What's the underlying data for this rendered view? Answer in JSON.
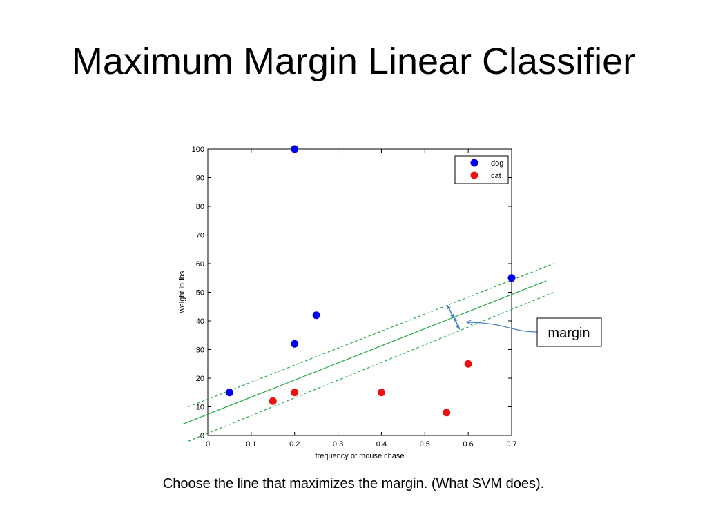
{
  "slide": {
    "title": "Maximum Margin Linear Classifier",
    "caption": "Choose the line that maximizes the margin. (What SVM does)."
  },
  "chart_data": {
    "type": "scatter",
    "title": "",
    "xlabel": "frequency of mouse chase",
    "ylabel": "weight in lbs",
    "xlim": [
      0,
      0.7
    ],
    "ylim": [
      0,
      100
    ],
    "xticks": [
      0,
      0.1,
      0.2,
      0.3,
      0.4,
      0.5,
      0.6,
      0.7
    ],
    "xtick_labels": [
      "0",
      "0.1",
      "0.2",
      "0.3",
      "0.4",
      "0.5",
      "0.6",
      "0.7"
    ],
    "yticks": [
      0,
      10,
      20,
      30,
      40,
      50,
      60,
      70,
      80,
      90,
      100
    ],
    "ytick_labels": [
      "0",
      "10",
      "20",
      "30",
      "40",
      "50",
      "60",
      "70",
      "80",
      "90",
      "100"
    ],
    "grid": false,
    "legend_position": "top-right",
    "series": [
      {
        "name": "dog",
        "color": "#0000ee",
        "points": [
          [
            0.05,
            15
          ],
          [
            0.2,
            32
          ],
          [
            0.2,
            100
          ],
          [
            0.25,
            42
          ],
          [
            0.7,
            55
          ]
        ]
      },
      {
        "name": "cat",
        "color": "#ee1111",
        "points": [
          [
            0.15,
            12
          ],
          [
            0.2,
            15
          ],
          [
            0.4,
            15
          ],
          [
            0.55,
            8
          ],
          [
            0.6,
            25
          ]
        ]
      }
    ],
    "lines": [
      {
        "style": "solid",
        "color": "#22aa44",
        "from": [
          -0.057,
          4
        ],
        "to": [
          0.78,
          54
        ]
      },
      {
        "style": "dashed",
        "color": "#22aa44",
        "from": [
          -0.045,
          10
        ],
        "to": [
          0.797,
          60
        ]
      },
      {
        "style": "dashed",
        "color": "#22aa44",
        "from": [
          -0.045,
          -2
        ],
        "to": [
          0.797,
          50
        ]
      }
    ],
    "annotation": {
      "label": "margin",
      "arrow_color": "#4a7fc0"
    }
  }
}
